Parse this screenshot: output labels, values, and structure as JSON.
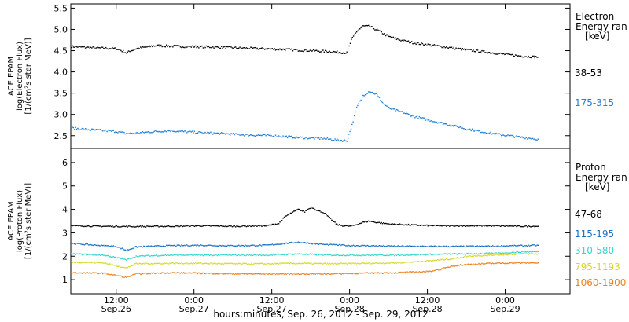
{
  "xaxis": {
    "label": "hours:minutes, Sep. 26, 2012 - Sep. 29, 2012",
    "ticks": [
      {
        "t": 12,
        "time": "12:00",
        "date": "Sep.26"
      },
      {
        "t": 24,
        "time": "0:00",
        "date": "Sep.27"
      },
      {
        "t": 36,
        "time": "12:00",
        "date": "Sep.27"
      },
      {
        "t": 48,
        "time": "0:00",
        "date": "Sep.28"
      },
      {
        "t": 60,
        "time": "12:00",
        "date": "Sep.28"
      },
      {
        "t": 72,
        "time": "0:00",
        "date": "Sep.29"
      }
    ]
  },
  "colors": {
    "black": "#000000",
    "blue": "#1f7fd9",
    "darkblue": "#1a70c8",
    "cyan": "#33d6cc",
    "yellow": "#d8d82a",
    "orange": "#ef7f1a"
  },
  "chart_data": [
    {
      "type": "scatter",
      "panel": "electron",
      "ylabel_lines": [
        "ACE EPAM",
        "log(Electron Flux)",
        "[1/(cm²s ster MeV)]"
      ],
      "yticks": [
        "2.5",
        "3.0",
        "3.5",
        "4.0",
        "4.5",
        "5.0",
        "5.5"
      ],
      "ylim": [
        2.2,
        5.6
      ],
      "xlim_hours": [
        5,
        82
      ],
      "legend_title": [
        "Electron",
        "Energy ran",
        "[keV]"
      ],
      "series": [
        {
          "name": "38-53",
          "color": "#000000",
          "points": [
            [
              5,
              4.6
            ],
            [
              8,
              4.57
            ],
            [
              10,
              4.56
            ],
            [
              12,
              4.55
            ],
            [
              13.5,
              4.45
            ],
            [
              15,
              4.55
            ],
            [
              18,
              4.62
            ],
            [
              22,
              4.6
            ],
            [
              26,
              4.59
            ],
            [
              30,
              4.57
            ],
            [
              34,
              4.55
            ],
            [
              38,
              4.53
            ],
            [
              42,
              4.5
            ],
            [
              45,
              4.48
            ],
            [
              47.5,
              4.45
            ],
            [
              48.2,
              4.75
            ],
            [
              49,
              4.95
            ],
            [
              50,
              5.08
            ],
            [
              51,
              5.07
            ],
            [
              52,
              5.0
            ],
            [
              54,
              4.83
            ],
            [
              56,
              4.74
            ],
            [
              58,
              4.68
            ],
            [
              62,
              4.6
            ],
            [
              66,
              4.52
            ],
            [
              70,
              4.45
            ],
            [
              74,
              4.38
            ],
            [
              77,
              4.35
            ]
          ]
        },
        {
          "name": "175-315",
          "color": "#1f7fd9",
          "points": [
            [
              5,
              2.68
            ],
            [
              8,
              2.64
            ],
            [
              12,
              2.6
            ],
            [
              13.5,
              2.55
            ],
            [
              15,
              2.56
            ],
            [
              18,
              2.6
            ],
            [
              20,
              2.62
            ],
            [
              24,
              2.58
            ],
            [
              28,
              2.55
            ],
            [
              32,
              2.52
            ],
            [
              36,
              2.5
            ],
            [
              40,
              2.46
            ],
            [
              44,
              2.43
            ],
            [
              47.5,
              2.38
            ],
            [
              48.3,
              2.75
            ],
            [
              49,
              3.15
            ],
            [
              50,
              3.45
            ],
            [
              51,
              3.55
            ],
            [
              52,
              3.48
            ],
            [
              53,
              3.28
            ],
            [
              54,
              3.15
            ],
            [
              56,
              3.05
            ],
            [
              58,
              2.95
            ],
            [
              62,
              2.8
            ],
            [
              66,
              2.66
            ],
            [
              70,
              2.55
            ],
            [
              74,
              2.47
            ],
            [
              77,
              2.42
            ]
          ]
        }
      ]
    },
    {
      "type": "scatter",
      "panel": "proton",
      "ylabel_lines": [
        "ACE EPAM",
        "log(Proton Flux)",
        "[1/(cm²s ster MeV)]"
      ],
      "yticks": [
        "1",
        "2",
        "3",
        "4",
        "5",
        "6"
      ],
      "ylim": [
        0.4,
        6.6
      ],
      "xlim_hours": [
        5,
        82
      ],
      "legend_title": [
        "Proton",
        "Energy ran",
        "[keV]"
      ],
      "series": [
        {
          "name": "47-68",
          "color": "#000000",
          "points": [
            [
              5,
              3.3
            ],
            [
              10,
              3.28
            ],
            [
              15,
              3.27
            ],
            [
              20,
              3.28
            ],
            [
              25,
              3.3
            ],
            [
              30,
              3.28
            ],
            [
              35,
              3.3
            ],
            [
              37,
              3.4
            ],
            [
              38,
              3.7
            ],
            [
              39,
              3.85
            ],
            [
              40,
              4.0
            ],
            [
              41,
              3.9
            ],
            [
              42,
              4.1
            ],
            [
              43,
              3.95
            ],
            [
              44,
              3.85
            ],
            [
              45,
              3.6
            ],
            [
              46,
              3.35
            ],
            [
              47,
              3.3
            ],
            [
              48,
              3.28
            ],
            [
              49,
              3.35
            ],
            [
              50,
              3.45
            ],
            [
              51,
              3.5
            ],
            [
              52,
              3.45
            ],
            [
              54,
              3.38
            ],
            [
              58,
              3.33
            ],
            [
              62,
              3.3
            ],
            [
              66,
              3.3
            ],
            [
              70,
              3.3
            ],
            [
              74,
              3.28
            ],
            [
              77,
              3.28
            ]
          ]
        },
        {
          "name": "115-195",
          "color": "#1a70c8",
          "points": [
            [
              5,
              2.55
            ],
            [
              10,
              2.45
            ],
            [
              12,
              2.42
            ],
            [
              13.5,
              2.25
            ],
            [
              15,
              2.4
            ],
            [
              20,
              2.45
            ],
            [
              25,
              2.47
            ],
            [
              30,
              2.45
            ],
            [
              35,
              2.47
            ],
            [
              38,
              2.55
            ],
            [
              40,
              2.6
            ],
            [
              42,
              2.55
            ],
            [
              44,
              2.5
            ],
            [
              47,
              2.47
            ],
            [
              50,
              2.45
            ],
            [
              55,
              2.43
            ],
            [
              60,
              2.42
            ],
            [
              65,
              2.42
            ],
            [
              70,
              2.43
            ],
            [
              74,
              2.45
            ],
            [
              77,
              2.47
            ]
          ]
        },
        {
          "name": "310-580",
          "color": "#33d6cc",
          "points": [
            [
              5,
              2.1
            ],
            [
              10,
              2.05
            ],
            [
              13.5,
              1.85
            ],
            [
              15,
              2.0
            ],
            [
              20,
              2.05
            ],
            [
              25,
              2.05
            ],
            [
              30,
              2.05
            ],
            [
              35,
              2.05
            ],
            [
              40,
              2.1
            ],
            [
              45,
              2.05
            ],
            [
              50,
              2.05
            ],
            [
              55,
              2.05
            ],
            [
              60,
              2.08
            ],
            [
              65,
              2.1
            ],
            [
              70,
              2.12
            ],
            [
              74,
              2.18
            ],
            [
              77,
              2.2
            ]
          ]
        },
        {
          "name": "795-1193",
          "color": "#d8d82a",
          "points": [
            [
              5,
              1.75
            ],
            [
              10,
              1.72
            ],
            [
              13.5,
              1.5
            ],
            [
              15,
              1.68
            ],
            [
              20,
              1.7
            ],
            [
              25,
              1.7
            ],
            [
              30,
              1.68
            ],
            [
              35,
              1.68
            ],
            [
              40,
              1.7
            ],
            [
              45,
              1.68
            ],
            [
              50,
              1.7
            ],
            [
              55,
              1.72
            ],
            [
              60,
              1.8
            ],
            [
              64,
              1.9
            ],
            [
              66,
              2.0
            ],
            [
              70,
              2.05
            ],
            [
              74,
              2.1
            ],
            [
              77,
              2.1
            ]
          ]
        },
        {
          "name": "1060-1900",
          "color": "#ef7f1a",
          "points": [
            [
              5,
              1.3
            ],
            [
              10,
              1.28
            ],
            [
              13.5,
              1.1
            ],
            [
              15,
              1.25
            ],
            [
              20,
              1.3
            ],
            [
              25,
              1.28
            ],
            [
              30,
              1.25
            ],
            [
              35,
              1.25
            ],
            [
              40,
              1.25
            ],
            [
              45,
              1.25
            ],
            [
              50,
              1.28
            ],
            [
              55,
              1.3
            ],
            [
              60,
              1.35
            ],
            [
              62,
              1.45
            ],
            [
              64,
              1.6
            ],
            [
              66,
              1.65
            ],
            [
              70,
              1.7
            ],
            [
              74,
              1.72
            ],
            [
              77,
              1.72
            ]
          ]
        }
      ]
    }
  ]
}
